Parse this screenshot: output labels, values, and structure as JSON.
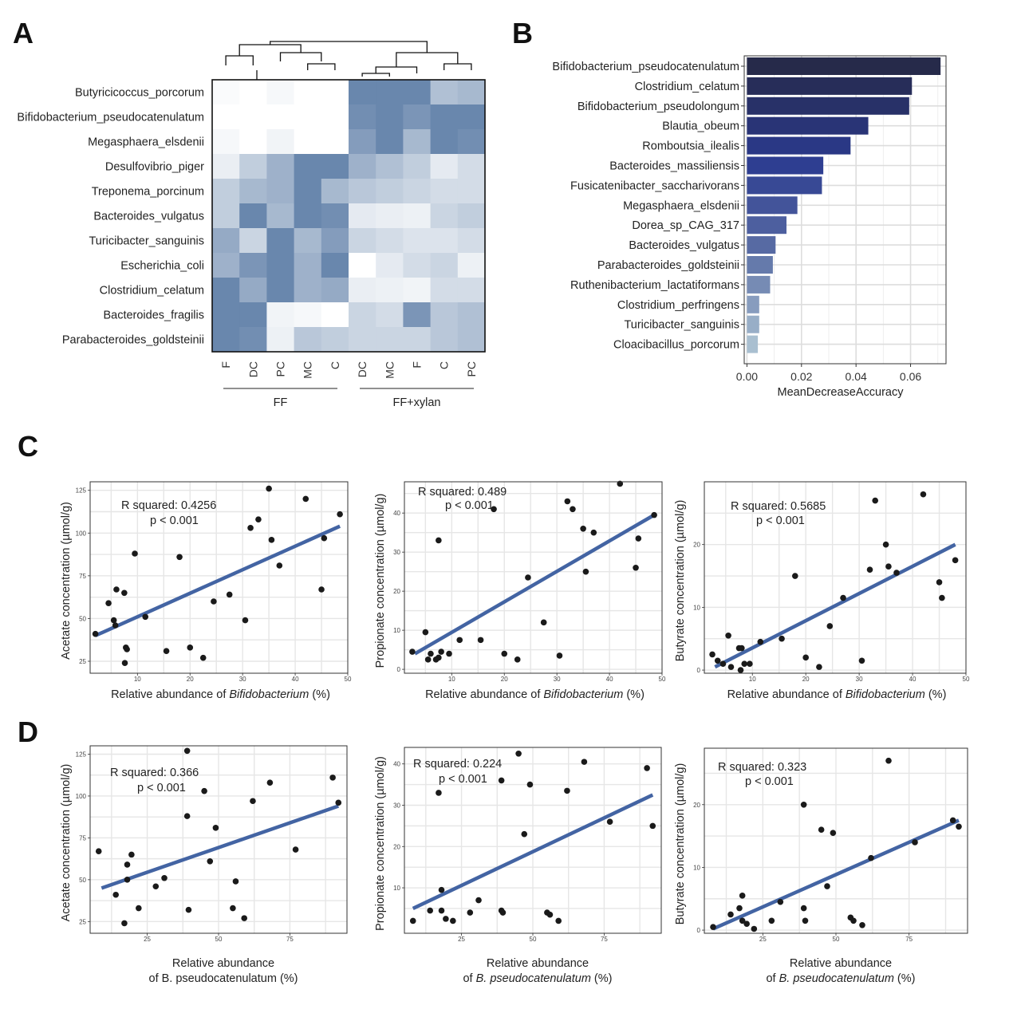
{
  "panels": {
    "A": "A",
    "B": "B",
    "C": "C",
    "D": "D"
  },
  "colors": {
    "heat_high": "#4f729f",
    "heat_low": "#ffffff",
    "bar_dark": "#262a4a",
    "bar_mid": "#2b3a8f",
    "bar_light": "#a9bfd0",
    "fit_line": "#4364a3",
    "point": "#1a1a1a"
  },
  "chart_data": [
    {
      "id": "A",
      "type": "heatmap",
      "rows": [
        "Butyricicoccus_porcorum",
        "Bifidobacterium_pseudocatenulatum",
        "Megasphaera_elsdenii",
        "Desulfovibrio_piger",
        "Treponema_porcinum",
        "Bacteroides_vulgatus",
        "Turicibacter_sanguinis",
        "Escherichia_coli",
        "Clostridium_celatum",
        "Bacteroides_fragilis",
        "Parabacteroides_goldsteinii"
      ],
      "columns": [
        "F",
        "DC",
        "PC",
        "MC",
        "C",
        "DC",
        "MC",
        "F",
        "C",
        "PC"
      ],
      "groups": [
        {
          "label": "FF",
          "from": 0,
          "to": 4
        },
        {
          "label": "FF+xylan",
          "from": 5,
          "to": 9
        }
      ],
      "values": [
        [
          0.03,
          0,
          0.05,
          0,
          0,
          0.85,
          0.85,
          0.85,
          0.45,
          0.5
        ],
        [
          0,
          0,
          0,
          0,
          0,
          0.8,
          0.85,
          0.75,
          0.85,
          0.85
        ],
        [
          0.05,
          0,
          0.08,
          0,
          0,
          0.7,
          0.85,
          0.5,
          0.85,
          0.8
        ],
        [
          0.12,
          0.35,
          0.55,
          0.85,
          0.85,
          0.55,
          0.45,
          0.35,
          0.15,
          0.25
        ],
        [
          0.35,
          0.5,
          0.55,
          0.85,
          0.5,
          0.4,
          0.35,
          0.3,
          0.25,
          0.25
        ],
        [
          0.35,
          0.85,
          0.5,
          0.85,
          0.8,
          0.15,
          0.12,
          0.1,
          0.3,
          0.35
        ],
        [
          0.6,
          0.3,
          0.85,
          0.5,
          0.7,
          0.3,
          0.25,
          0.2,
          0.2,
          0.25
        ],
        [
          0.55,
          0.75,
          0.85,
          0.55,
          0.85,
          0,
          0.15,
          0.25,
          0.3,
          0.1
        ],
        [
          0.85,
          0.6,
          0.85,
          0.55,
          0.6,
          0.12,
          0.1,
          0.08,
          0.25,
          0.25
        ],
        [
          0.85,
          0.85,
          0.08,
          0.05,
          0,
          0.3,
          0.25,
          0.75,
          0.4,
          0.45
        ],
        [
          0.85,
          0.8,
          0.1,
          0.4,
          0.35,
          0.3,
          0.3,
          0.3,
          0.4,
          0.45
        ]
      ]
    },
    {
      "id": "B",
      "type": "bar",
      "orientation": "horizontal",
      "categories": [
        "Bifidobacterium_pseudocatenulatum",
        "Clostridium_celatum",
        "Bifidobacterium_pseudolongum",
        "Blautia_obeum",
        "Romboutsia_ilealis",
        "Bacteroides_massiliensis",
        "Fusicatenibacter_saccharivorans",
        "Megasphaera_elsdenii",
        "Dorea_sp_CAG_317",
        "Bacteroides_vulgatus",
        "Parabacteroides_goldsteinii",
        "Ruthenibacterium_lactatiformans",
        "Clostridium_perfringens",
        "Turicibacter_sanguinis",
        "Cloacibacillus_porcorum"
      ],
      "values": [
        0.071,
        0.0605,
        0.0595,
        0.0445,
        0.038,
        0.028,
        0.0275,
        0.0185,
        0.0145,
        0.0105,
        0.0095,
        0.0085,
        0.0045,
        0.0045,
        0.004
      ],
      "xlabel": "MeanDecreaseAccuracy",
      "xlim": [
        -0.001,
        0.073
      ],
      "xticks": [
        "0.00",
        "0.02",
        "0.04",
        "0.06"
      ],
      "xtick_values": [
        0,
        0.02,
        0.04,
        0.06
      ],
      "grid": true
    },
    {
      "id": "C1",
      "type": "scatter",
      "ylabel": "Acetate concentration (µmol/g)",
      "xlabel_main": "Relative abundance  of ",
      "xlabel_italic": "Bifidobacterium",
      "xlabel_tail": " (%)",
      "r2": "R squared: 0.4256",
      "p": "p < 0.001",
      "xlim": [
        1,
        50
      ],
      "ylim": [
        18,
        130
      ],
      "xticks": [
        "10",
        "20",
        "30",
        "40",
        "50"
      ],
      "xtick_values": [
        10,
        20,
        30,
        40,
        50
      ],
      "yticks": [
        "25",
        "50",
        "75",
        "100",
        "125"
      ],
      "ytick_values": [
        25,
        50,
        75,
        100,
        125
      ],
      "fit": {
        "x": [
          2,
          48.5
        ],
        "y": [
          40,
          104
        ]
      },
      "x": [
        2,
        4.5,
        6,
        5.5,
        5.8,
        9.5,
        7.5,
        7.8,
        7.6,
        8,
        11.5,
        15.5,
        18,
        20,
        22.5,
        24.5,
        27.5,
        30.5,
        31.5,
        33,
        35,
        35.5,
        37,
        42,
        45,
        45.5,
        48.5
      ],
      "y": [
        41,
        59,
        67,
        49,
        46,
        88,
        65,
        33,
        24,
        32,
        51,
        31,
        86,
        33,
        27,
        60,
        64,
        49,
        103,
        108,
        126,
        96,
        81,
        120,
        67,
        97,
        111
      ]
    },
    {
      "id": "C2",
      "type": "scatter",
      "ylabel": "Propionate concentration (µmol/g)",
      "xlabel_main": "Relative abundance  of ",
      "xlabel_italic": "Bifidobacterium",
      "xlabel_tail": " (%)",
      "r2": "R squared: 0.489",
      "p": "p < 0.001",
      "xlim": [
        1,
        50
      ],
      "ylim": [
        -1,
        48
      ],
      "xticks": [
        "10",
        "20",
        "30",
        "40",
        "50"
      ],
      "xtick_values": [
        10,
        20,
        30,
        40,
        50
      ],
      "yticks": [
        "0",
        "10",
        "20",
        "30",
        "40"
      ],
      "ytick_values": [
        0,
        10,
        20,
        30,
        40
      ],
      "fit": {
        "x": [
          3,
          48.5
        ],
        "y": [
          4,
          39.5
        ]
      },
      "x": [
        2.5,
        5,
        6,
        5.5,
        7,
        7.5,
        8,
        7.5,
        9.5,
        11.5,
        15.5,
        18,
        20,
        22.5,
        24.5,
        27.5,
        30.5,
        32,
        33,
        35,
        35.5,
        37,
        42,
        45,
        45.5,
        48.5
      ],
      "y": [
        4.5,
        9.5,
        4,
        2.5,
        2.5,
        33,
        4.5,
        3,
        4,
        7.5,
        7.5,
        41,
        4,
        2.5,
        23.5,
        12,
        3.5,
        43,
        41,
        36,
        25,
        35,
        47.5,
        26,
        33.5,
        39.5
      ]
    },
    {
      "id": "C3",
      "type": "scatter",
      "ylabel": "Butyrate concentration (µmol/g)",
      "xlabel_main": "Relative abundance  of ",
      "xlabel_italic": "Bifidobacterium",
      "xlabel_tail": " (%)",
      "r2": "R squared: 0.5685",
      "p": "p < 0.001",
      "xlim": [
        1,
        50
      ],
      "ylim": [
        -0.5,
        30
      ],
      "xticks": [
        "10",
        "20",
        "30",
        "40",
        "50"
      ],
      "xtick_values": [
        10,
        20,
        30,
        40,
        50
      ],
      "yticks": [
        "0",
        "10",
        "20"
      ],
      "ytick_values": [
        0,
        10,
        20
      ],
      "fit": {
        "x": [
          3,
          48
        ],
        "y": [
          0.5,
          20
        ]
      },
      "x": [
        2.5,
        3.5,
        4.5,
        5.5,
        6,
        7.5,
        7.8,
        8,
        8.5,
        9.5,
        11.5,
        15.5,
        18,
        20,
        22.5,
        24.5,
        27,
        30.5,
        32,
        33,
        35,
        35.5,
        37,
        42,
        45,
        45.5,
        48
      ],
      "y": [
        2.5,
        1.5,
        1,
        5.5,
        0.5,
        3.5,
        0,
        3.5,
        1,
        1,
        4.5,
        5,
        15,
        2,
        0.5,
        7,
        11.5,
        1.5,
        16,
        27,
        20,
        16.5,
        15.5,
        28,
        14,
        11.5,
        17.5
      ]
    },
    {
      "id": "D1",
      "type": "scatter",
      "ylabel": "Acetate concentration (µmol/g)",
      "xlabel_main": "Relative abundance",
      "xlabel_line2_main": "of B. pseudocatenulatum (%)",
      "xlabel_line2_italic": "",
      "xlabel_line2_tail": "",
      "r2": "R squared: 0.366",
      "p": "p < 0.001",
      "xlim": [
        5,
        95
      ],
      "ylim": [
        18,
        130
      ],
      "xticks": [
        "25",
        "50",
        "75"
      ],
      "xtick_values": [
        25,
        50,
        75
      ],
      "yticks": [
        "25",
        "50",
        "75",
        "100",
        "125"
      ],
      "ytick_values": [
        25,
        50,
        75,
        100,
        125
      ],
      "fit": {
        "x": [
          9,
          92
        ],
        "y": [
          45,
          94
        ]
      },
      "x": [
        8,
        14,
        17,
        18,
        18,
        19.5,
        22,
        28,
        31,
        39,
        39,
        39.5,
        45,
        47,
        49,
        55,
        56,
        59,
        62,
        68,
        77,
        90,
        92
      ],
      "y": [
        67,
        41,
        24,
        59,
        50,
        65,
        33,
        46,
        51,
        127,
        88,
        32,
        103,
        61,
        81,
        33,
        49,
        27,
        97,
        108,
        68,
        111,
        96
      ],
      "italic_x": false
    },
    {
      "id": "D2",
      "type": "scatter",
      "ylabel": "Propionate concentration (µmol/g)",
      "xlabel_main": "Relative abundance",
      "xlabel_line2_main": "of ",
      "xlabel_line2_italic": "B. pseudocatenulatum",
      "xlabel_line2_tail": " (%)",
      "r2": "R squared: 0.224",
      "p": "p < 0.001",
      "xlim": [
        5,
        95
      ],
      "ylim": [
        -1,
        44
      ],
      "xticks": [
        "25",
        "50",
        "75"
      ],
      "xtick_values": [
        25,
        50,
        75
      ],
      "yticks": [
        "10",
        "20",
        "30",
        "40"
      ],
      "ytick_values": [
        10,
        20,
        30,
        40
      ],
      "fit": {
        "x": [
          8,
          92
        ],
        "y": [
          5,
          32.5
        ]
      },
      "x": [
        8,
        14,
        17,
        18,
        18,
        19.5,
        22,
        28,
        31,
        39,
        39,
        39.5,
        45,
        47,
        49,
        55,
        56,
        59,
        62,
        68,
        77,
        90,
        92
      ],
      "y": [
        2,
        4.5,
        33,
        9.5,
        4.5,
        2.5,
        2,
        4,
        7,
        36,
        4.5,
        4,
        42.5,
        23,
        35,
        4,
        3.5,
        2,
        33.5,
        40.5,
        26,
        39,
        25
      ]
    },
    {
      "id": "D3",
      "type": "scatter",
      "ylabel": "Butyrate concentration (µmol/g)",
      "xlabel_main": "Relative abundance",
      "xlabel_line2_main": "of ",
      "xlabel_line2_italic": "B. pseudocatenulatum",
      "xlabel_line2_tail": " (%)",
      "r2": "R squared: 0.323",
      "p": "p < 0.001",
      "xlim": [
        5,
        95
      ],
      "ylim": [
        -0.5,
        29
      ],
      "xticks": [
        "25",
        "50",
        "75"
      ],
      "xtick_values": [
        25,
        50,
        75
      ],
      "yticks": [
        "0",
        "10",
        "20"
      ],
      "ytick_values": [
        0,
        10,
        20
      ],
      "fit": {
        "x": [
          8,
          92
        ],
        "y": [
          0.2,
          17.5
        ]
      },
      "x": [
        8,
        14,
        17,
        18,
        18,
        19.5,
        22,
        28,
        31,
        39,
        39,
        39.5,
        45,
        47,
        49,
        55,
        56,
        59,
        62,
        68,
        77,
        90,
        92
      ],
      "y": [
        0.5,
        2.5,
        3.5,
        5.5,
        1.5,
        1,
        0.2,
        1.5,
        4.5,
        20,
        3.5,
        1.5,
        16,
        7,
        15.5,
        2,
        1.5,
        0.8,
        11.5,
        27,
        14,
        17.5,
        16.5
      ]
    }
  ]
}
